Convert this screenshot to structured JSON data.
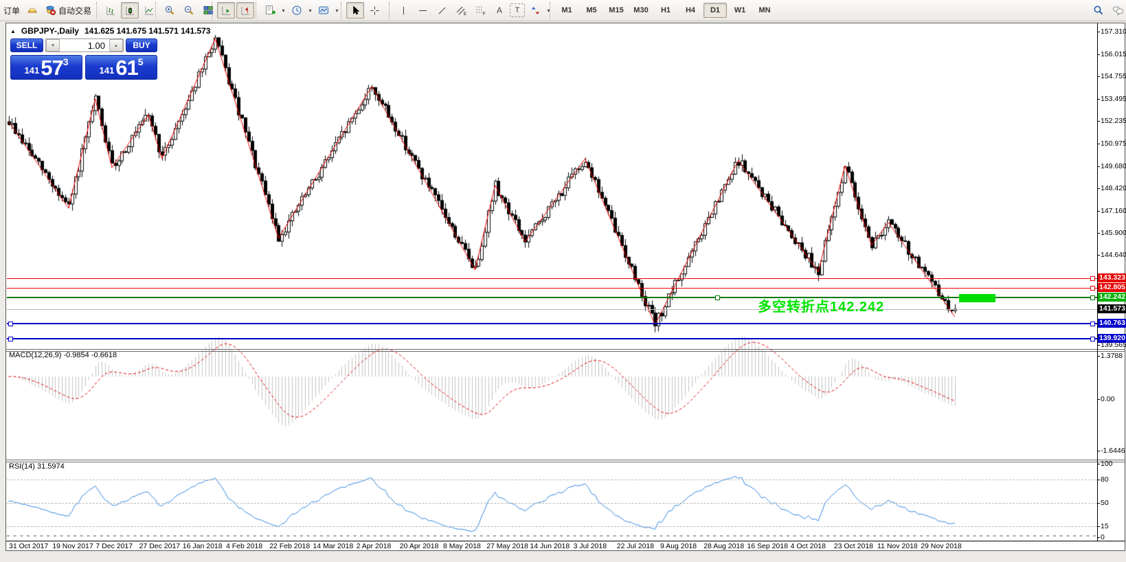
{
  "icons": {
    "collapse": "▲",
    "dropdown": "▾",
    "step_up": "▴",
    "step_down": "▾",
    "text_tool": "A",
    "label_tool": "T",
    "channel_sub": "E",
    "fibo_sub": "F"
  },
  "toolbar": {
    "order_label": "订单",
    "autotrade_label": "自动交易",
    "timeframes": [
      "M1",
      "M5",
      "M15",
      "M30",
      "H1",
      "H4",
      "D1",
      "W1",
      "MN"
    ],
    "active_timeframe": "D1"
  },
  "chart": {
    "title": "GBPJPY-,Daily",
    "ohlc": "141.625 141.675 141.571 141.573",
    "trade_panel": {
      "sell_label": "SELL",
      "buy_label": "BUY",
      "volume": "1.00",
      "sell_main": "141",
      "sell_big": "57",
      "sell_sup": "3",
      "buy_main": "141",
      "buy_big": "61",
      "buy_sup": "5"
    },
    "annotation": "多空转折点142.242",
    "axis_labels": [
      "157.310",
      "156.015",
      "154.755",
      "153.495",
      "152.235",
      "150.975",
      "149.680",
      "148.420",
      "147.160",
      "145.900",
      "144.640",
      "139.565"
    ],
    "price_tags": [
      {
        "text": "143.323",
        "bg": "#e60000"
      },
      {
        "text": "142.805",
        "bg": "#e60000"
      },
      {
        "text": "142.242",
        "bg": "#00b000"
      },
      {
        "text": "141.573",
        "bg": "#000000"
      },
      {
        "text": "140.763",
        "bg": "#0000cc"
      },
      {
        "text": "139.920",
        "bg": "#0000cc"
      }
    ],
    "hlines": [
      {
        "price": 143.323,
        "color": "#ee0000",
        "width": 1,
        "handles": [
          "right"
        ]
      },
      {
        "price": 142.805,
        "color": "#ee0000",
        "width": 1,
        "handles": [
          "right"
        ]
      },
      {
        "price": 142.242,
        "color": "#007800",
        "width": 2,
        "handles": [
          "center",
          "right"
        ]
      },
      {
        "price": 141.573,
        "color": "#b8b8b8",
        "width": 1,
        "handles": []
      },
      {
        "price": 140.763,
        "color": "#0000c8",
        "width": 2,
        "handles": [
          "left",
          "right"
        ]
      },
      {
        "price": 139.92,
        "color": "#0000c8",
        "width": 2,
        "handles": [
          "left",
          "right"
        ]
      }
    ]
  },
  "macd": {
    "label": "MACD(12,26,9) -0.9854 -0.6618",
    "axis": [
      "1.3788",
      "0.00",
      "-1.6446"
    ]
  },
  "rsi": {
    "label": "RSI(14) 31.5974",
    "axis": [
      "100",
      "80",
      "50",
      "15",
      "0"
    ]
  },
  "dates": [
    "31 Oct 2017",
    "19 Nov 2017",
    "7 Dec 2017",
    "27 Dec 2017",
    "16 Jan 2018",
    "4 Feb 2018",
    "22 Feb 2018",
    "14 Mar 2018",
    "2 Apr 2018",
    "20 Apr 2018",
    "8 May 2018",
    "27 May 2018",
    "14 Jun 2018",
    "3 Jul 2018",
    "22 Jul 2018",
    "9 Aug 2018",
    "28 Aug 2018",
    "16 Sep 2018",
    "4 Oct 2018",
    "23 Oct 2018",
    "11 Nov 2018",
    "29 Nov 2018"
  ],
  "chart_data": {
    "type": "candlestick",
    "symbol": "GBPJPY-",
    "timeframe": "Daily",
    "last_ohlc": {
      "open": 141.625,
      "high": 141.675,
      "low": 141.571,
      "close": 141.573
    },
    "bid": 141.573,
    "ask": 141.615,
    "bars": 285,
    "price_axis_range": [
      139.565,
      157.31
    ],
    "zigzag_waypoints": [
      [
        0,
        152.2
      ],
      [
        18,
        147.3
      ],
      [
        26,
        153.5
      ],
      [
        31,
        149.6
      ],
      [
        42,
        152.6
      ],
      [
        46,
        150.1
      ],
      [
        62,
        156.9
      ],
      [
        81,
        145.6
      ],
      [
        109,
        154.2
      ],
      [
        140,
        143.8
      ],
      [
        146,
        148.6
      ],
      [
        155,
        145.4
      ],
      [
        173,
        150.1
      ],
      [
        194,
        140.7
      ],
      [
        219,
        150.0
      ],
      [
        243,
        143.7
      ],
      [
        251,
        149.7
      ],
      [
        259,
        145.2
      ],
      [
        264,
        146.5
      ],
      [
        284,
        141.15
      ]
    ],
    "horizontal_levels": [
      143.323,
      142.805,
      142.242,
      141.573,
      140.763,
      139.92
    ],
    "macd": {
      "fast": 12,
      "slow": 26,
      "signal": 9,
      "value": -0.9854,
      "signal_value": -0.6618,
      "range": [
        -1.6446,
        1.3788
      ]
    },
    "rsi": {
      "period": 14,
      "value": 31.5974,
      "levels": [
        80,
        50,
        15
      ],
      "range": [
        0,
        100
      ]
    }
  }
}
